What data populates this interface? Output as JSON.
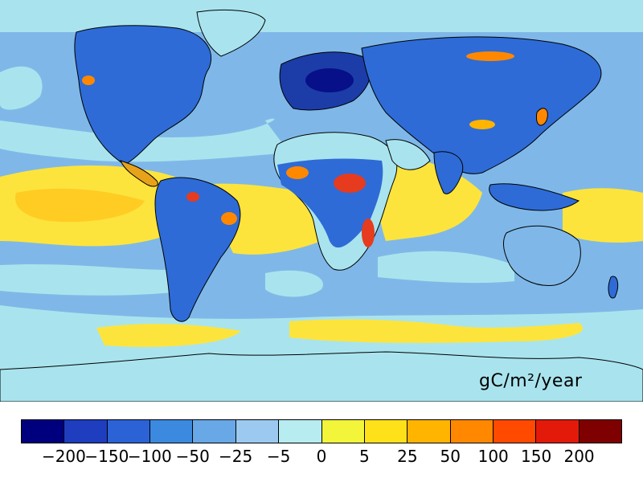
{
  "map": {
    "unit_label": "gC/m²/year",
    "colors": {
      "ocean_cool": "#7fb8e8",
      "ocean_mid": "#a9e4ee",
      "tropic_warm": "#fde43c",
      "land_blue": "#2e6bd6",
      "land_dark": "#1c3da8",
      "hot": "#e63b1e",
      "coast": "#000000"
    }
  },
  "legend": {
    "colors": [
      "#00007f",
      "#1f3dbf",
      "#2b63d6",
      "#3c8ae0",
      "#68a8e6",
      "#9cc9ef",
      "#b7ecf0",
      "#f2f53a",
      "#ffe11a",
      "#ffb400",
      "#ff8800",
      "#ff4a00",
      "#e31a0a",
      "#7f0000"
    ],
    "tick_labels": [
      "−200",
      "−150",
      "−100",
      "−50",
      "−25",
      "−5",
      "0",
      "5",
      "25",
      "50",
      "100",
      "150",
      "200"
    ]
  }
}
